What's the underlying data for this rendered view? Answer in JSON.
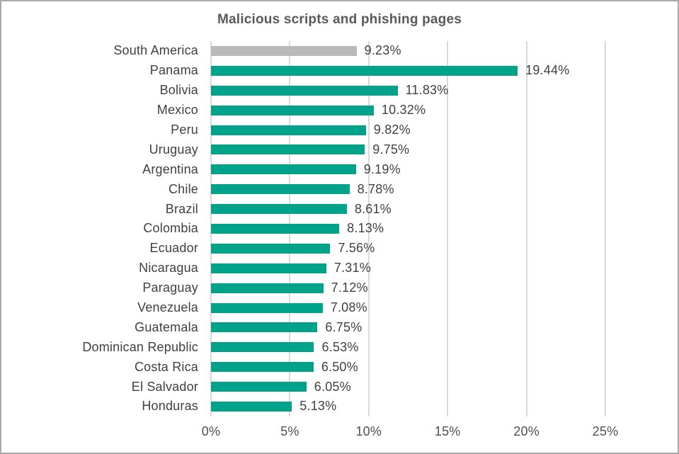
{
  "chart": {
    "title": "Malicious scripts and phishing pages",
    "colors": {
      "bar": "#00a38a",
      "highlight_bar": "#b9b9b9",
      "grid": "#d9d9d9",
      "label_text": "#404040",
      "axis_text": "#4f4f4f",
      "title_text": "#595959"
    }
  },
  "chart_data": {
    "type": "bar",
    "orientation": "horizontal",
    "title": "Malicious scripts and phishing pages",
    "categories": [
      "South America",
      "Panama",
      "Bolivia",
      "Mexico",
      "Peru",
      "Uruguay",
      "Argentina",
      "Chile",
      "Brazil",
      "Colombia",
      "Ecuador",
      "Nicaragua",
      "Paraguay",
      "Venezuela",
      "Guatemala",
      "Dominican Republic",
      "Costa Rica",
      "El Salvador",
      "Honduras"
    ],
    "values": [
      9.23,
      19.44,
      11.83,
      10.32,
      9.82,
      9.75,
      9.19,
      8.78,
      8.61,
      8.13,
      7.56,
      7.31,
      7.12,
      7.08,
      6.75,
      6.53,
      6.5,
      6.05,
      5.13
    ],
    "value_labels": [
      "9.23%",
      "19.44%",
      "11.83%",
      "10.32%",
      "9.82%",
      "9.75%",
      "9.19%",
      "8.78%",
      "8.61%",
      "8.13%",
      "7.56%",
      "7.31%",
      "7.12%",
      "7.08%",
      "6.75%",
      "6.53%",
      "6.50%",
      "6.05%",
      "5.13%"
    ],
    "highlight_category": "South America",
    "xlim": [
      0,
      25
    ],
    "x_tick_labels": [
      "0%",
      "5%",
      "10%",
      "15%",
      "20%",
      "25%"
    ],
    "grid": true,
    "legend": "none"
  }
}
